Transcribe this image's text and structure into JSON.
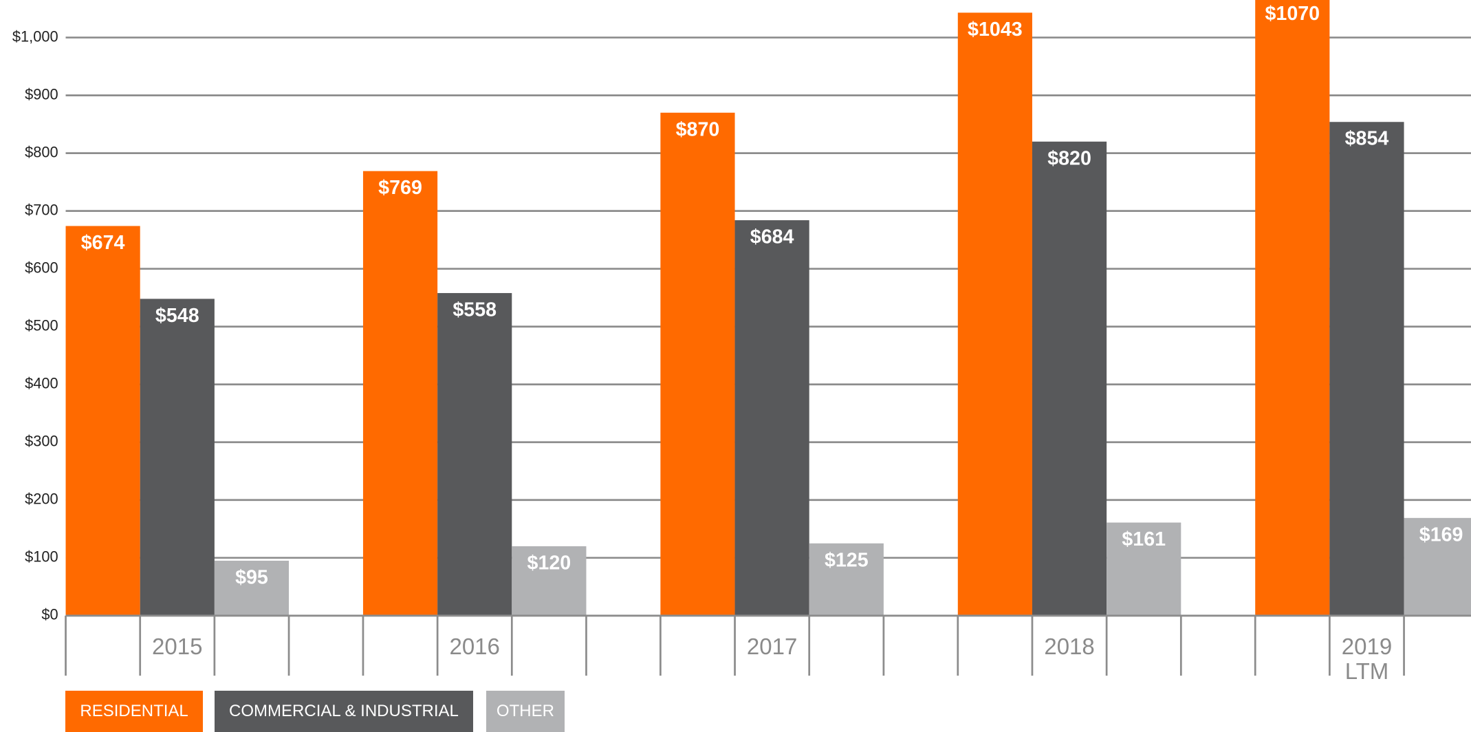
{
  "chart_data": {
    "type": "bar",
    "categories": [
      "2015",
      "2016",
      "2017",
      "2018",
      "2019 LTM"
    ],
    "series": [
      {
        "name": "RESIDENTIAL",
        "color": "#ff6a00",
        "values": [
          674,
          769,
          870,
          1043,
          1070
        ],
        "value_labels": [
          "$674",
          "$769",
          "$870",
          "$1043",
          "$1070"
        ]
      },
      {
        "name": "COMMERCIAL & INDUSTRIAL",
        "color": "#58595b",
        "values": [
          548,
          558,
          684,
          820,
          854
        ],
        "value_labels": [
          "$548",
          "$558",
          "$684",
          "$820",
          "$854"
        ]
      },
      {
        "name": "OTHER",
        "color": "#b1b2b4",
        "values": [
          95,
          120,
          125,
          161,
          169
        ],
        "value_labels": [
          "$95",
          "$120",
          "$125",
          "$161",
          "$169"
        ]
      }
    ],
    "ylim": [
      0,
      1000
    ],
    "yticks": [
      {
        "value": 0,
        "label": "$0"
      },
      {
        "value": 100,
        "label": "$100"
      },
      {
        "value": 200,
        "label": "$200"
      },
      {
        "value": 300,
        "label": "$300"
      },
      {
        "value": 400,
        "label": "$400"
      },
      {
        "value": 500,
        "label": "$500"
      },
      {
        "value": 600,
        "label": "$600"
      },
      {
        "value": 700,
        "label": "$700"
      },
      {
        "value": 800,
        "label": "$800"
      },
      {
        "value": 900,
        "label": "$900"
      },
      {
        "value": 1000,
        "label": "$1,000"
      }
    ],
    "grid": true
  }
}
